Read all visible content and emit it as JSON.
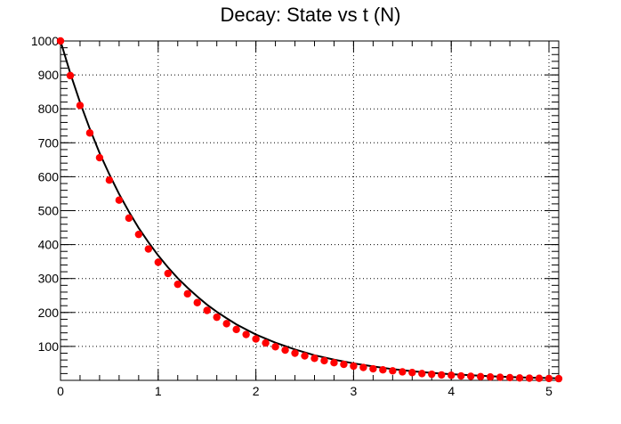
{
  "chart_data": {
    "type": "scatter",
    "title": "Decay: State vs t  (N)",
    "xlabel": "",
    "ylabel": "",
    "xlim": [
      0,
      5.1
    ],
    "ylim": [
      0,
      1000
    ],
    "x_ticks": [
      0,
      1,
      2,
      3,
      4,
      5
    ],
    "y_ticks": [
      100,
      200,
      300,
      400,
      500,
      600,
      700,
      800,
      900,
      1000
    ],
    "grid": true,
    "legend": "none",
    "colors": {
      "points": "#ff0000",
      "curve": "#000000",
      "grid": "#000000",
      "axes": "#000000"
    },
    "series": [
      {
        "type": "scatter",
        "x": [
          0.0,
          0.1,
          0.2,
          0.3,
          0.4,
          0.5,
          0.6,
          0.7,
          0.8,
          0.9,
          1.0,
          1.1,
          1.2,
          1.3,
          1.4,
          1.5,
          1.6,
          1.7,
          1.8,
          1.9,
          2.0,
          2.1,
          2.2,
          2.3,
          2.4,
          2.5,
          2.6,
          2.7,
          2.8,
          2.9,
          3.0,
          3.1,
          3.2,
          3.3,
          3.4,
          3.5,
          3.6,
          3.7,
          3.8,
          3.9,
          4.0,
          4.1,
          4.2,
          4.3,
          4.4,
          4.5,
          4.6,
          4.7,
          4.8,
          4.9,
          5.0,
          5.1
        ],
        "y": [
          1000,
          898,
          810,
          729,
          656,
          590,
          531,
          478,
          430,
          387,
          348,
          315,
          283,
          255,
          229,
          206,
          186,
          167,
          150,
          135,
          122,
          110,
          99,
          89,
          80,
          72,
          65,
          58,
          52,
          47,
          42,
          38,
          34,
          31,
          28,
          25,
          23,
          20,
          18,
          16,
          15,
          13,
          12,
          11,
          10,
          9,
          8,
          7,
          6.5,
          6,
          5.5,
          5
        ]
      },
      {
        "type": "line",
        "function": "1000*exp(-1.0*t)",
        "x": [
          0.0,
          0.1,
          0.2,
          0.3,
          0.4,
          0.5,
          0.6,
          0.7,
          0.8,
          0.9,
          1.0,
          1.1,
          1.2,
          1.3,
          1.4,
          1.5,
          1.6,
          1.7,
          1.8,
          1.9,
          2.0,
          2.2,
          2.4,
          2.6,
          2.8,
          3.0,
          3.2,
          3.4,
          3.6,
          3.8,
          4.0,
          4.2,
          4.4,
          4.6,
          4.8,
          5.0,
          5.1
        ],
        "y": [
          1000,
          905,
          819,
          741,
          670,
          607,
          549,
          497,
          449,
          407,
          368,
          333,
          301,
          273,
          247,
          223,
          202,
          183,
          165,
          150,
          135,
          111,
          91,
          74,
          61,
          50,
          41,
          33,
          27,
          22,
          18,
          15,
          12,
          10,
          8,
          7,
          6
        ]
      }
    ]
  }
}
